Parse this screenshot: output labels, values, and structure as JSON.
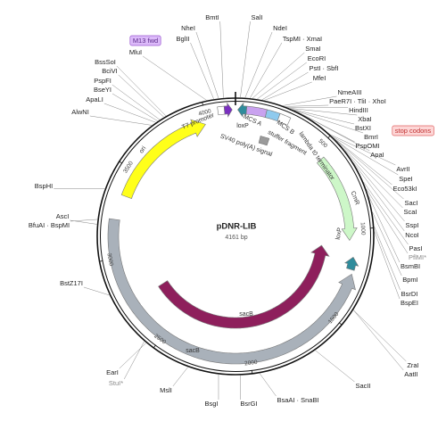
{
  "map": {
    "title": "pDNR-LIB",
    "size": {
      "value": 4161,
      "label": "4161 bp"
    },
    "primer": "M13 fwd",
    "annotation": "stop codons",
    "sites": [
      "BmtI",
      "SalI",
      "NheI",
      "NdeI",
      "BglII",
      "TspMI · XmaI",
      "SmaI",
      "MluI",
      "EcoRI",
      "BssSoI",
      "PstI · SbfI",
      "BciVI",
      "MfeI",
      "PspFI",
      "BseYI",
      "NmeAIII",
      "ApaLI",
      "PaeR7I · TliI · XhoI",
      "HindIII",
      "AlwNI",
      "XbaI",
      "BstXI",
      "BmrI",
      "PspOMI",
      "ApaI",
      "AvrII",
      "SpeI",
      "Eco53kI",
      "SacI",
      "ScaI",
      "SspI",
      "NcoI",
      "PasI",
      "PflMI*",
      "BsmBI",
      "BpmI",
      "BsrDI",
      "BspEI",
      "ZraI",
      "AatII",
      "SacII",
      "BsaAI · SnaBI",
      "BsrGI",
      "BsgI",
      "MslI",
      "EarI",
      "StuI*",
      "BstZ17I",
      "AscI",
      "BfuAI · BspMI",
      "BspHI"
    ],
    "features": [
      "T7 promoter",
      "loxP",
      "MCS A",
      "MCS B",
      "stuffer fragment",
      "lambda t0 terminator",
      "SV40 poly(A) signal",
      "ori",
      "CmR",
      "loxP",
      "sacB",
      "sacB"
    ],
    "coordinates": [
      500,
      1000,
      1500,
      2000,
      2500,
      3000,
      3500,
      4000
    ]
  }
}
